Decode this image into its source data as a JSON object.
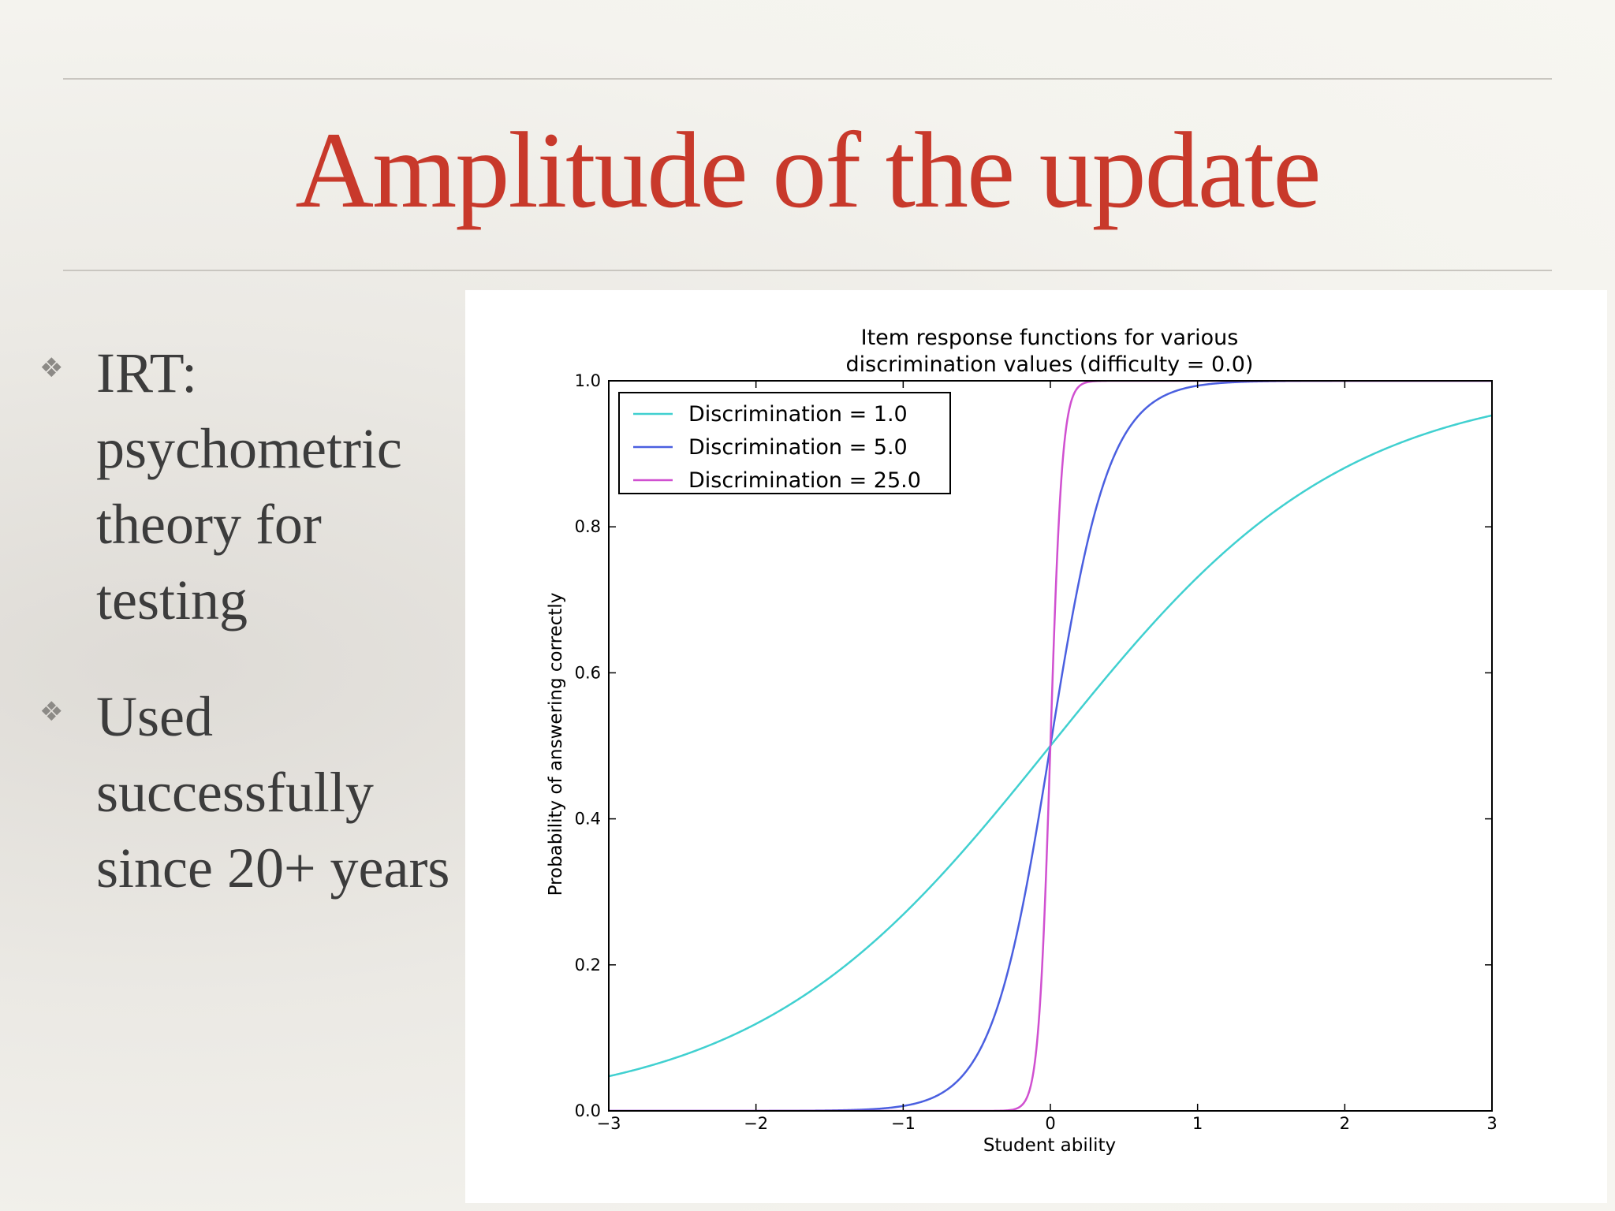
{
  "slide": {
    "title": "Amplitude of the update",
    "bullets": [
      {
        "icon": "diamond-flower-icon",
        "text": "IRT: psychometric theory for testing"
      },
      {
        "icon": "diamond-flower-icon",
        "text": "Used successfully since 20+ years"
      }
    ]
  },
  "chart_data": {
    "type": "line",
    "title_lines": [
      "Item response functions for various",
      "discrimination values (difficulty = 0.0)"
    ],
    "xlabel": "Student ability",
    "ylabel": "Probability of answering correctly",
    "xlim": [
      -3,
      3
    ],
    "ylim": [
      0.0,
      1.0
    ],
    "x_ticks": [
      "−3",
      "−2",
      "−1",
      "0",
      "1",
      "2",
      "3"
    ],
    "y_ticks": [
      "0.0",
      "0.2",
      "0.4",
      "0.6",
      "0.8",
      "1.0"
    ],
    "grid": false,
    "legend_position": "top-left",
    "difficulty": 0.0,
    "series": [
      {
        "name": "Discrimination = 1.0",
        "discrimination": 1.0,
        "color": "#40d0d0"
      },
      {
        "name": "Discrimination = 5.0",
        "discrimination": 5.0,
        "color": "#4a5fe0"
      },
      {
        "name": "Discrimination = 25.0",
        "discrimination": 25.0,
        "color": "#d050d0"
      }
    ]
  }
}
